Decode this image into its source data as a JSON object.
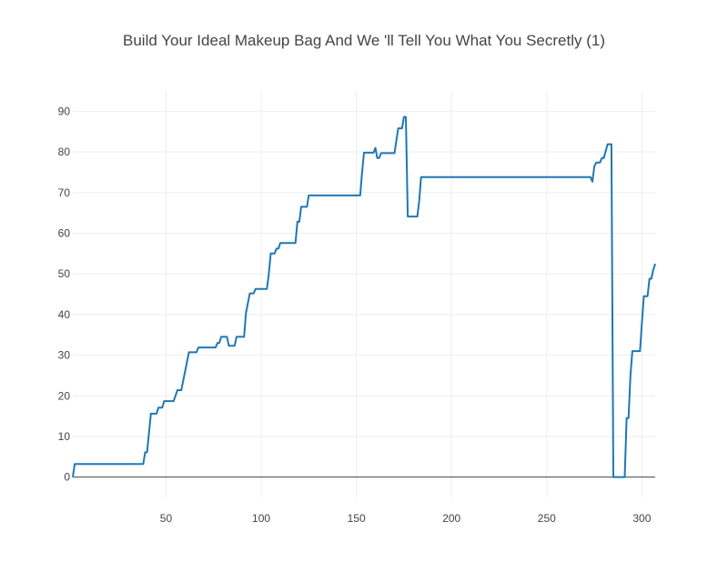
{
  "chart_data": {
    "type": "line",
    "title": "Build Your Ideal Makeup Bag And We 'll Tell You What You Secretly (1)",
    "xlabel": "",
    "ylabel": "",
    "xlim": [
      1,
      307
    ],
    "ylim": [
      -5,
      95
    ],
    "x_ticks": [
      50,
      100,
      150,
      200,
      250,
      300
    ],
    "y_ticks": [
      0,
      10,
      20,
      30,
      40,
      50,
      60,
      70,
      80,
      90
    ],
    "grid": true,
    "series": [
      {
        "color": "#1f77b4",
        "points": [
          [
            1,
            0
          ],
          [
            2,
            3.2
          ],
          [
            38,
            3.2
          ],
          [
            39,
            6.1
          ],
          [
            40,
            6.1
          ],
          [
            42,
            15.6
          ],
          [
            45,
            15.6
          ],
          [
            46,
            17.1
          ],
          [
            48,
            17.1
          ],
          [
            49,
            18.7
          ],
          [
            54,
            18.7
          ],
          [
            56,
            21.4
          ],
          [
            58,
            21.4
          ],
          [
            60,
            26
          ],
          [
            62,
            30.7
          ],
          [
            66,
            30.7
          ],
          [
            67,
            31.9
          ],
          [
            76,
            31.9
          ],
          [
            77,
            33
          ],
          [
            78,
            33
          ],
          [
            79,
            34.5
          ],
          [
            82,
            34.5
          ],
          [
            83,
            32.3
          ],
          [
            86,
            32.3
          ],
          [
            87,
            34.5
          ],
          [
            91,
            34.5
          ],
          [
            92,
            40.4
          ],
          [
            94,
            45.2
          ],
          [
            96,
            45.2
          ],
          [
            97,
            46.3
          ],
          [
            103,
            46.3
          ],
          [
            104,
            50
          ],
          [
            105,
            55
          ],
          [
            107,
            55
          ],
          [
            108,
            56.2
          ],
          [
            109,
            56.2
          ],
          [
            110,
            57.6
          ],
          [
            118,
            57.6
          ],
          [
            119,
            62.8
          ],
          [
            120,
            62.8
          ],
          [
            121,
            66.5
          ],
          [
            124,
            66.5
          ],
          [
            125,
            69.3
          ],
          [
            152,
            69.3
          ],
          [
            153,
            75
          ],
          [
            154,
            79.8
          ],
          [
            159,
            79.8
          ],
          [
            160,
            81
          ],
          [
            161,
            78.5
          ],
          [
            162,
            78.5
          ],
          [
            163,
            79.7
          ],
          [
            170,
            79.7
          ],
          [
            172,
            85.8
          ],
          [
            174,
            85.8
          ],
          [
            175,
            88.6
          ],
          [
            176,
            88.6
          ],
          [
            177,
            64.1
          ],
          [
            182,
            64.1
          ],
          [
            183,
            68
          ],
          [
            184,
            73.8
          ],
          [
            273,
            73.8
          ],
          [
            274,
            72.7
          ],
          [
            275,
            76.4
          ],
          [
            276,
            77.4
          ],
          [
            278,
            77.4
          ],
          [
            279,
            78.5
          ],
          [
            280,
            78.5
          ],
          [
            282,
            81.9
          ],
          [
            284,
            81.9
          ],
          [
            285,
            0
          ],
          [
            291,
            0
          ],
          [
            292,
            14.5
          ],
          [
            293,
            14.5
          ],
          [
            294,
            25
          ],
          [
            295,
            31
          ],
          [
            299,
            31
          ],
          [
            300,
            38
          ],
          [
            301,
            44.5
          ],
          [
            303,
            44.5
          ],
          [
            304,
            48.8
          ],
          [
            305,
            48.8
          ],
          [
            306,
            51
          ],
          [
            307,
            52.5
          ]
        ]
      }
    ]
  }
}
